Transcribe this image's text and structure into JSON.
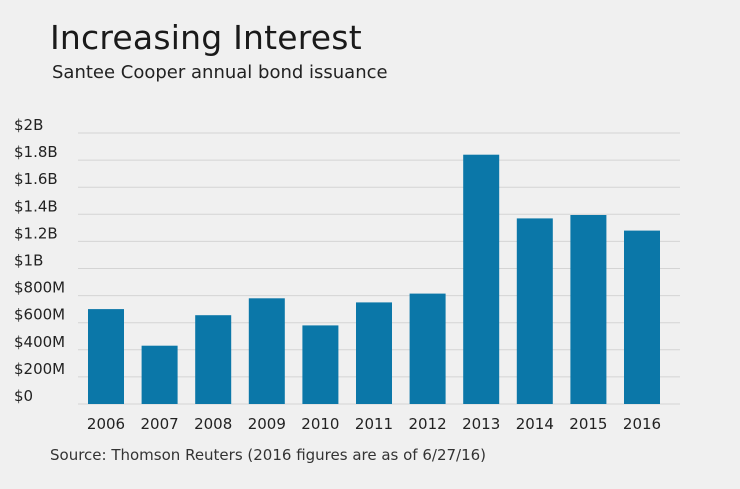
{
  "colors": {
    "background": "#f0f0f0",
    "bar": "#0b77a8",
    "grid": "#d4d4d4",
    "text": "#222222"
  },
  "chart_data": {
    "type": "bar",
    "title": "Increasing Interest",
    "subtitle": "Santee Cooper annual bond issuance",
    "source": "Source: Thomson Reuters (2016 figures are as of 6/27/16)",
    "categories": [
      "2006",
      "2007",
      "2008",
      "2009",
      "2010",
      "2011",
      "2012",
      "2013",
      "2014",
      "2015",
      "2016"
    ],
    "values": [
      700,
      430,
      655,
      780,
      580,
      750,
      815,
      1840,
      1370,
      1395,
      1280
    ],
    "unit": "millions of dollars",
    "ylim": [
      0,
      2000
    ],
    "yticks": [
      {
        "value": 0,
        "label": "$0"
      },
      {
        "value": 200,
        "label": "$200M"
      },
      {
        "value": 400,
        "label": "$400M"
      },
      {
        "value": 600,
        "label": "$600M"
      },
      {
        "value": 800,
        "label": "$800M"
      },
      {
        "value": 1000,
        "label": "$1B"
      },
      {
        "value": 1200,
        "label": "$1.2B"
      },
      {
        "value": 1400,
        "label": "$1.4B"
      },
      {
        "value": 1600,
        "label": "$1.6B"
      },
      {
        "value": 1800,
        "label": "$1.8B"
      },
      {
        "value": 2000,
        "label": "$2B"
      }
    ],
    "grid": true,
    "legend": "none"
  }
}
